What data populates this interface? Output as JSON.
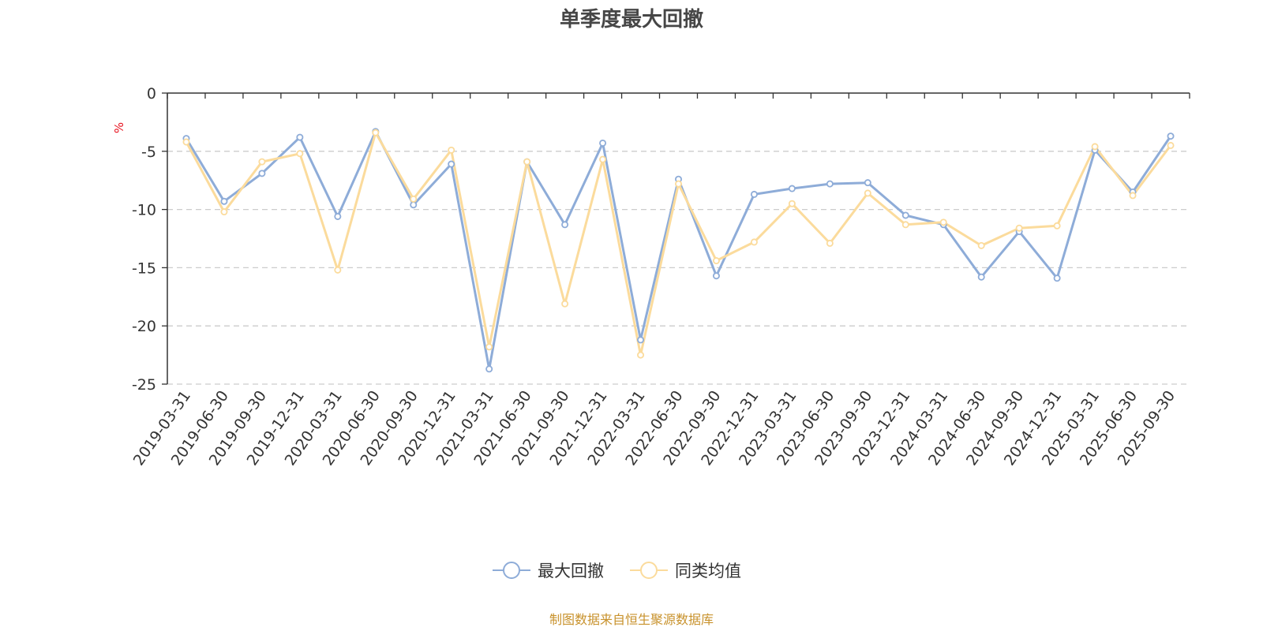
{
  "chart_data": {
    "type": "line",
    "title": "单季度最大回撤",
    "ylabel": "%",
    "ylim": [
      -25,
      0
    ],
    "yticks": [
      0,
      -5,
      -10,
      -15,
      -20,
      -25
    ],
    "grid": "horizontal dashed",
    "categories": [
      "2019-03-31",
      "2019-06-30",
      "2019-09-30",
      "2019-12-31",
      "2020-03-31",
      "2020-06-30",
      "2020-09-30",
      "2020-12-31",
      "2021-03-31",
      "2021-06-30",
      "2021-09-30",
      "2021-12-31",
      "2022-03-31",
      "2022-06-30",
      "2022-09-30",
      "2022-12-31",
      "2023-03-31",
      "2023-06-30",
      "2023-09-30",
      "2023-12-31",
      "2024-03-31",
      "2024-06-30",
      "2024-09-30",
      "2024-12-31",
      "2025-03-31",
      "2025-06-30",
      "2025-09-30"
    ],
    "series": [
      {
        "name": "最大回撤",
        "color": "#8eacd8",
        "values": [
          -3.9,
          -9.3,
          -6.9,
          -3.8,
          -10.6,
          -3.3,
          -9.6,
          -6.1,
          -23.7,
          -5.9,
          -11.3,
          -4.3,
          -21.2,
          -7.4,
          -15.7,
          -8.7,
          -8.2,
          -7.8,
          -7.7,
          -10.5,
          -11.3,
          -15.8,
          -11.9,
          -15.9,
          -4.9,
          -8.5,
          -3.7
        ]
      },
      {
        "name": "同类均值",
        "color": "#fbdb9c",
        "values": [
          -4.2,
          -10.2,
          -5.9,
          -5.2,
          -15.2,
          -3.4,
          -9.1,
          -4.9,
          -21.8,
          -5.9,
          -18.1,
          -5.7,
          -22.5,
          -7.8,
          -14.4,
          -12.8,
          -9.5,
          -12.9,
          -8.6,
          -11.3,
          -11.1,
          -13.1,
          -11.6,
          -11.4,
          -4.6,
          -8.8,
          -4.5
        ]
      }
    ],
    "legend_position": "bottom-center"
  },
  "source_note": "制图数据来自恒生聚源数据库"
}
